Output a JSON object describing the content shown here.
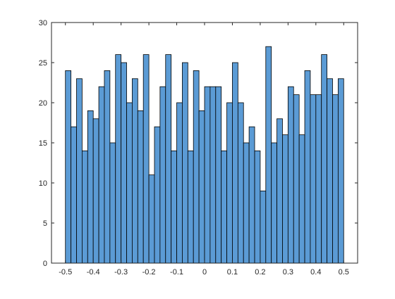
{
  "chart_data": {
    "type": "bar",
    "subtype": "histogram",
    "bin_width": 0.02,
    "bin_centers": [
      -0.49,
      -0.47,
      -0.45,
      -0.43,
      -0.41,
      -0.39,
      -0.37,
      -0.35,
      -0.33,
      -0.31,
      -0.29,
      -0.27,
      -0.25,
      -0.23,
      -0.21,
      -0.19,
      -0.17,
      -0.15,
      -0.13,
      -0.11,
      -0.09,
      -0.07,
      -0.05,
      -0.03,
      -0.01,
      0.01,
      0.03,
      0.05,
      0.07,
      0.09,
      0.11,
      0.13,
      0.15,
      0.17,
      0.19,
      0.21,
      0.23,
      0.25,
      0.27,
      0.29,
      0.31,
      0.33,
      0.35,
      0.37,
      0.39,
      0.41,
      0.43,
      0.45,
      0.47,
      0.49
    ],
    "values": [
      24,
      17,
      23,
      14,
      19,
      18,
      22,
      24,
      15,
      26,
      25,
      20,
      23,
      19,
      26,
      11,
      17,
      22,
      26,
      14,
      20,
      25,
      14,
      24,
      19,
      22,
      22,
      22,
      14,
      20,
      25,
      20,
      15,
      17,
      14,
      9,
      27,
      15,
      18,
      16,
      22,
      21,
      16,
      24,
      21,
      21,
      26,
      23,
      21,
      23
    ],
    "xlim": [
      -0.55,
      0.55
    ],
    "ylim": [
      0,
      30
    ],
    "x_ticks": [
      "-0.5",
      "-0.4",
      "-0.3",
      "-0.2",
      "-0.1",
      "0",
      "0.1",
      "0.2",
      "0.3",
      "0.4",
      "0.5"
    ],
    "y_ticks": [
      "0",
      "5",
      "10",
      "15",
      "20",
      "25",
      "30"
    ],
    "bar_color": "#5B9BD5",
    "edge_color": "#000000",
    "grid": false,
    "title": "",
    "xlabel": "",
    "ylabel": ""
  }
}
